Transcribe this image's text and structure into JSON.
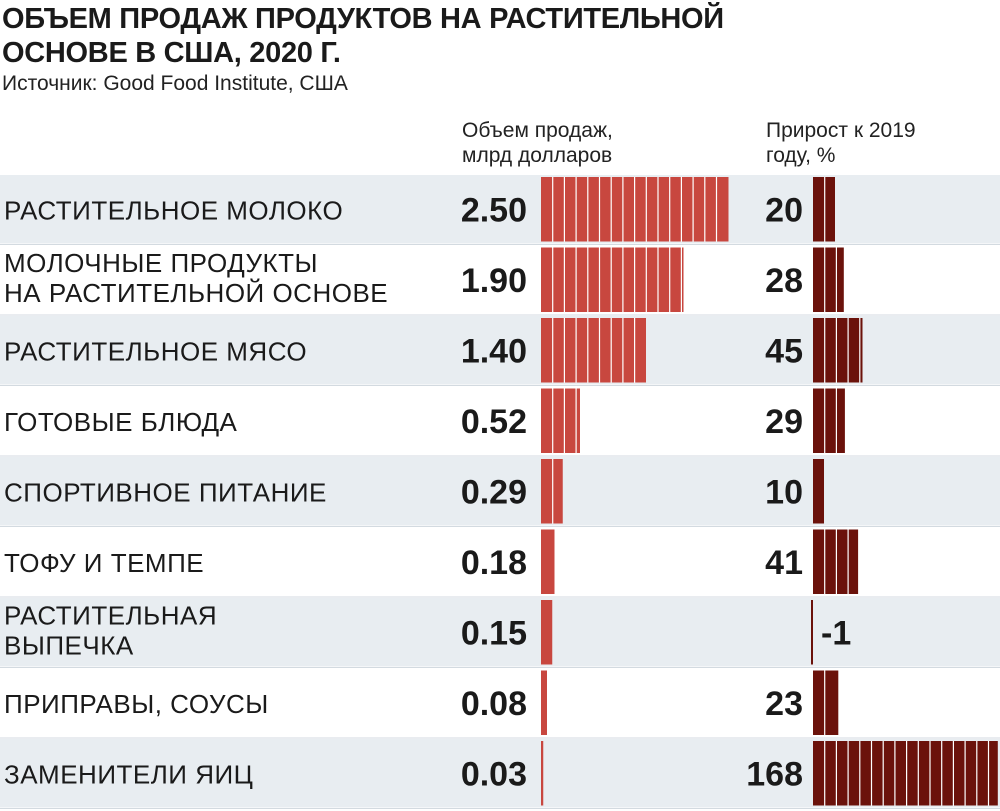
{
  "title": "ОБЪЕМ ПРОДАЖ ПРОДУКТОВ НА РАСТИТЕЛЬНОЙ ОСНОВЕ В США, 2020 Г.",
  "source": "Источник: Good Food Institute, США",
  "columns": {
    "sales": "Объем продаж, млрд долларов",
    "growth": "Прирост к 2019 году, %"
  },
  "colors": {
    "sales_bar": "#c8473f",
    "growth_bar": "#6b120b",
    "row_shade": "#e8edf1"
  },
  "chart_data": {
    "type": "bar",
    "categories": [
      [
        "РАСТИТЕЛЬНОЕ МОЛОКО"
      ],
      [
        "МОЛОЧНЫЕ ПРОДУКТЫ",
        "НА РАСТИТЕЛЬНОЙ ОСНОВЕ"
      ],
      [
        "РАСТИТЕЛЬНОЕ МЯСО"
      ],
      [
        "ГОТОВЫЕ БЛЮДА"
      ],
      [
        "СПОРТИВНОЕ ПИТАНИЕ"
      ],
      [
        "ТОФУ И ТЕМПЕ"
      ],
      [
        "РАСТИТЕЛЬНАЯ",
        "ВЫПЕЧКА"
      ],
      [
        "ПРИПРАВЫ, СОУСЫ"
      ],
      [
        "ЗАМЕНИТЕЛИ ЯИЦ"
      ]
    ],
    "series": [
      {
        "name": "Объем продаж, млрд долларов",
        "values": [
          2.5,
          1.9,
          1.4,
          0.52,
          0.29,
          0.18,
          0.15,
          0.08,
          0.03
        ],
        "labels": [
          "2.50",
          "1.90",
          "1.40",
          "0.52",
          "0.29",
          "0.18",
          "0.15",
          "0.08",
          "0.03"
        ]
      },
      {
        "name": "Прирост к 2019 году, %",
        "values": [
          20,
          28,
          45,
          29,
          10,
          41,
          -1,
          23,
          168
        ],
        "labels": [
          "20",
          "28",
          "45",
          "29",
          "10",
          "41",
          "-1",
          "23",
          "168"
        ]
      }
    ],
    "grid": false
  }
}
